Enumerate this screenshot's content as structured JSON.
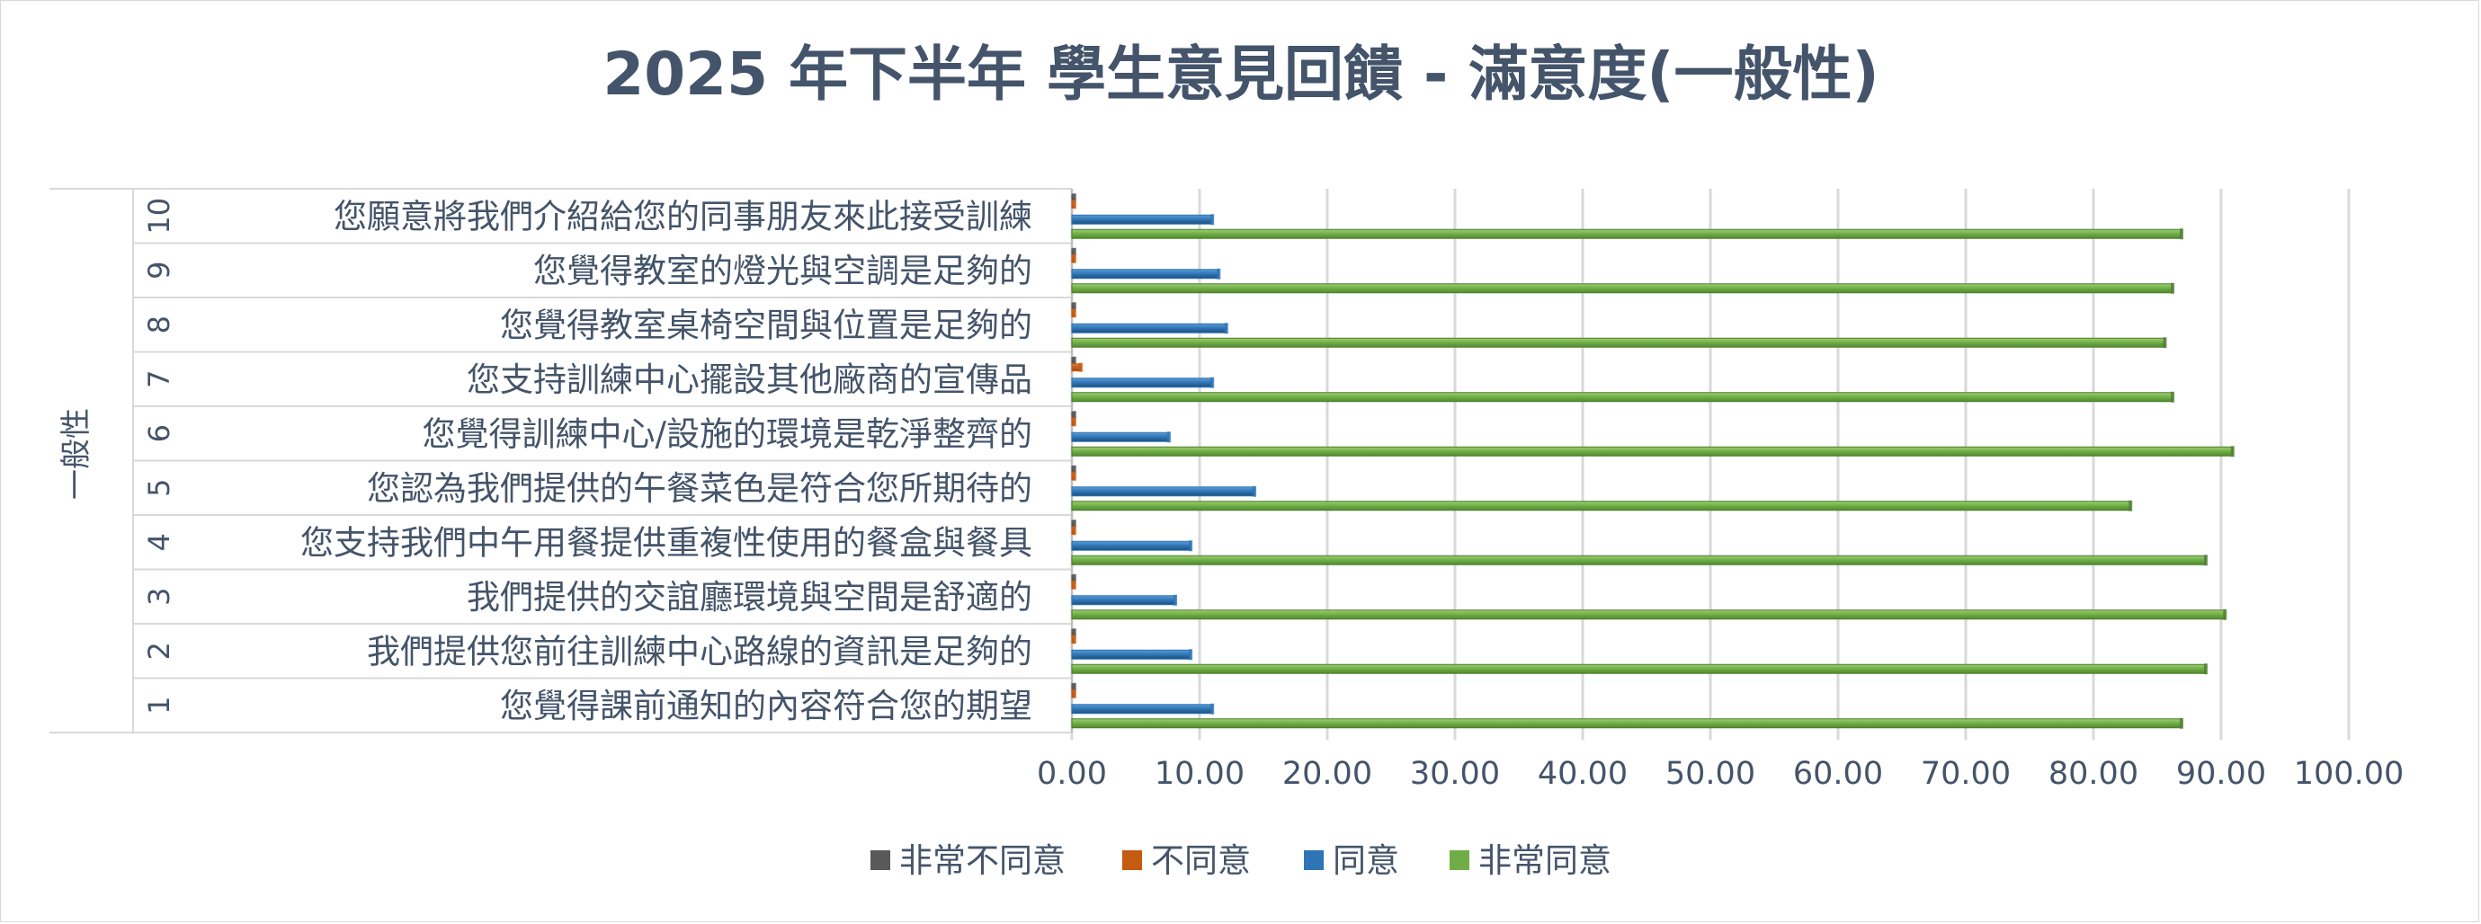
{
  "chart_data": {
    "type": "bar",
    "orientation": "horizontal",
    "title": "2025 年下半年 學生意見回饋 - 滿意度(一般性)",
    "group_label": "一般性",
    "categories": [
      {
        "number": "1",
        "label": "您覺得課前通知的內容符合您的期望"
      },
      {
        "number": "2",
        "label": "我們提供您前往訓練中心路線的資訊是足夠的"
      },
      {
        "number": "3",
        "label": "我們提供的交誼廳環境與空間是舒適的"
      },
      {
        "number": "4",
        "label": "您支持我們中午用餐提供重複性使用的餐盒與餐具"
      },
      {
        "number": "5",
        "label": "您認為我們提供的午餐菜色是符合您所期待的"
      },
      {
        "number": "6",
        "label": "您覺得訓練中心/設施的環境是乾淨整齊的"
      },
      {
        "number": "7",
        "label": "您支持訓練中心擺設其他廠商的宣傳品"
      },
      {
        "number": "8",
        "label": "您覺得教室桌椅空間與位置是足夠的"
      },
      {
        "number": "9",
        "label": "您覺得教室的燈光與空調是足夠的"
      },
      {
        "number": "10",
        "label": "您願意將我們介紹給您的同事朋友來此接受訓練"
      }
    ],
    "series": [
      {
        "name": "非常不同意",
        "color": "#595959",
        "values": [
          0.2,
          0.2,
          0.2,
          0.2,
          0.2,
          0.2,
          0.2,
          0.2,
          0.2,
          0.2
        ]
      },
      {
        "name": "不同意",
        "color": "#c55a11",
        "values": [
          0.2,
          0.2,
          0.2,
          0.2,
          0.2,
          0.2,
          0.7,
          0.2,
          0.2,
          0.2
        ]
      },
      {
        "name": "同意",
        "color": "#2e75b6",
        "values": [
          11.0,
          9.3,
          8.1,
          9.3,
          14.3,
          7.6,
          11.0,
          12.1,
          11.5,
          11.0
        ]
      },
      {
        "name": "非常同意",
        "color": "#70ad47",
        "values": [
          86.9,
          88.8,
          90.3,
          88.8,
          82.9,
          90.9,
          86.2,
          85.6,
          86.2,
          86.9
        ]
      }
    ],
    "xlim": [
      0,
      100
    ],
    "xticks": [
      "0.00",
      "10.00",
      "20.00",
      "30.00",
      "40.00",
      "50.00",
      "60.00",
      "70.00",
      "80.00",
      "90.00",
      "100.00"
    ],
    "grid": true,
    "legend_position": "bottom"
  }
}
